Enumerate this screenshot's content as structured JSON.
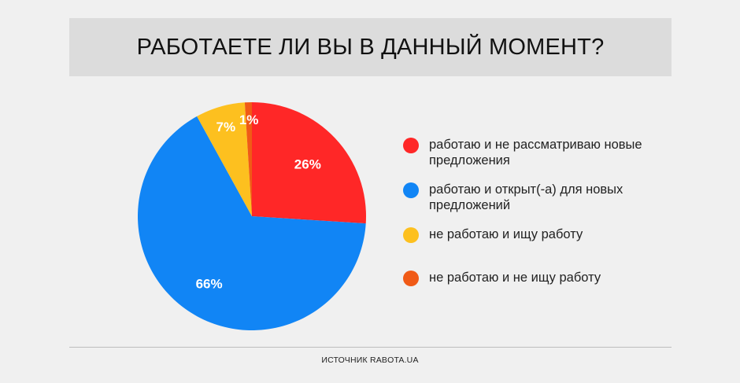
{
  "chart_data": {
    "type": "pie",
    "title": "РАБОТАЕТЕ ЛИ ВЫ В ДАННЫЙ МОМЕНТ?",
    "slices": [
      {
        "label": "работаю и не рассматриваю новые предложения",
        "value": 26,
        "display": "26%",
        "color": "#ff2727"
      },
      {
        "label": "работаю и открыт(-а) для новых предложений",
        "value": 66,
        "display": "66%",
        "color": "#1185f5"
      },
      {
        "label": "не работаю и ищу работу",
        "value": 7,
        "display": "7%",
        "color": "#fdc01f"
      },
      {
        "label": "не работаю и не ищу работу",
        "value": 1,
        "display": "1%",
        "color": "#f05a16"
      }
    ],
    "legend_position": "right"
  },
  "footer": {
    "source": "ИСТОЧНИК RABOTA.UA"
  }
}
